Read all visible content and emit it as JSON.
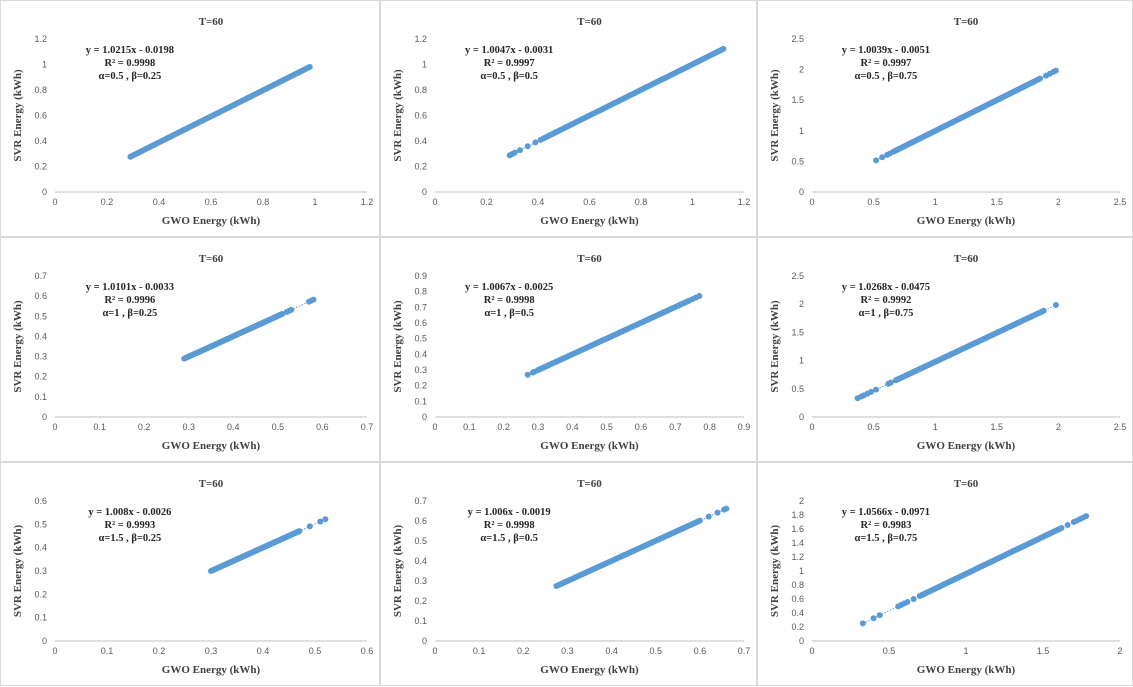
{
  "chart_data": [
    {
      "type": "scatter",
      "title": "T=60",
      "xlabel": "GWO Energy (kWh)",
      "ylabel": "SVR Energy (kWh)",
      "xlim": [
        0,
        1.2
      ],
      "ylim": [
        0,
        1.2
      ],
      "xticks": [
        "0",
        "0.2",
        "0.4",
        "0.6",
        "0.8",
        "1",
        "1.2"
      ],
      "yticks": [
        "0",
        "0.2",
        "0.4",
        "0.6",
        "0.8",
        "1",
        "1.2"
      ],
      "annotation": [
        "y = 1.0215x - 0.0198",
        "R² = 0.9998",
        "α=0.5 , β=0.25"
      ],
      "points": {
        "x_range": [
          0.29,
          0.98
        ],
        "clusters": []
      },
      "trendline": {
        "slope": 1.0215,
        "intercept": -0.0198
      },
      "color": "#5b9bd5",
      "grid": false,
      "legend": "none"
    },
    {
      "type": "scatter",
      "title": "T=60",
      "xlabel": "GWO Energy (kWh)",
      "ylabel": "SVR Energy (kWh)",
      "xlim": [
        0,
        1.2
      ],
      "ylim": [
        0,
        1.2
      ],
      "xticks": [
        "0",
        "0.2",
        "0.4",
        "0.6",
        "0.8",
        "1",
        "1.2"
      ],
      "yticks": [
        "0",
        "0.2",
        "0.4",
        "0.6",
        "0.8",
        "1",
        "1.2"
      ],
      "annotation": [
        "y = 1.0047x - 0.0031",
        "R² = 0.9997",
        "α=0.5 , β=0.5"
      ],
      "points": {
        "x_range": [
          0.42,
          1.12
        ],
        "clusters": [
          0.29,
          0.3,
          0.31,
          0.33,
          0.36,
          0.39,
          0.41
        ]
      },
      "trendline": {
        "slope": 1.0047,
        "intercept": -0.0031
      },
      "color": "#5b9bd5",
      "grid": false,
      "legend": "none"
    },
    {
      "type": "scatter",
      "title": "T=60",
      "xlabel": "GWO Energy (kWh)",
      "ylabel": "SVR Energy (kWh)",
      "xlim": [
        0,
        2.5
      ],
      "ylim": [
        0,
        2.5
      ],
      "xticks": [
        "0",
        "0.5",
        "1",
        "1.5",
        "2",
        "2.5"
      ],
      "yticks": [
        "0",
        "0.5",
        "1",
        "1.5",
        "2",
        "2.5"
      ],
      "annotation": [
        "y = 1.0039x - 0.0051",
        "R² = 0.9997",
        "α=0.5 , β=0.75"
      ],
      "points": {
        "x_range": [
          0.66,
          1.85
        ],
        "clusters": [
          0.52,
          0.57,
          0.61,
          0.63,
          1.9,
          1.93,
          1.96,
          1.98
        ]
      },
      "trendline": {
        "slope": 1.0039,
        "intercept": -0.0051
      },
      "color": "#5b9bd5",
      "grid": false,
      "legend": "none"
    },
    {
      "type": "scatter",
      "title": "T=60",
      "xlabel": "GWO Energy (kWh)",
      "ylabel": "SVR Energy (kWh)",
      "xlim": [
        0,
        0.7
      ],
      "ylim": [
        0,
        0.7
      ],
      "xticks": [
        "0",
        "0.1",
        "0.2",
        "0.3",
        "0.4",
        "0.5",
        "0.6",
        "0.7"
      ],
      "yticks": [
        "0",
        "0.1",
        "0.2",
        "0.3",
        "0.4",
        "0.5",
        "0.6",
        "0.7"
      ],
      "annotation": [
        "y = 1.0101x - 0.0033",
        "R² = 0.9996",
        "α=1 , β=0.25"
      ],
      "points": {
        "x_range": [
          0.29,
          0.51
        ],
        "clusters": [
          0.52,
          0.525,
          0.53,
          0.57,
          0.575,
          0.58
        ]
      },
      "trendline": {
        "slope": 1.0101,
        "intercept": -0.0033
      },
      "color": "#5b9bd5",
      "grid": false,
      "legend": "none"
    },
    {
      "type": "scatter",
      "title": "T=60",
      "xlabel": "GWO Energy (kWh)",
      "ylabel": "SVR Energy (kWh)",
      "xlim": [
        0,
        0.9
      ],
      "ylim": [
        0,
        0.9
      ],
      "xticks": [
        "0",
        "0.1",
        "0.2",
        "0.3",
        "0.4",
        "0.5",
        "0.6",
        "0.7",
        "0.8",
        "0.9"
      ],
      "yticks": [
        "0",
        "0.1",
        "0.2",
        "0.3",
        "0.4",
        "0.5",
        "0.6",
        "0.7",
        "0.8",
        "0.9"
      ],
      "annotation": [
        "y = 1.0067x - 0.0025",
        "R² = 0.9998",
        "α=1 , β=0.5"
      ],
      "points": {
        "x_range": [
          0.3,
          0.74
        ],
        "clusters": [
          0.27,
          0.285,
          0.29,
          0.75,
          0.76,
          0.77
        ]
      },
      "trendline": {
        "slope": 1.0067,
        "intercept": -0.0025
      },
      "color": "#5b9bd5",
      "grid": false,
      "legend": "none"
    },
    {
      "type": "scatter",
      "title": "T=60",
      "xlabel": "GWO Energy (kWh)",
      "ylabel": "SVR Energy (kWh)",
      "xlim": [
        0,
        2.5
      ],
      "ylim": [
        0,
        2.5
      ],
      "xticks": [
        "0",
        "0.5",
        "1",
        "1.5",
        "2",
        "2.5"
      ],
      "yticks": [
        "0",
        "0.5",
        "1",
        "1.5",
        "2",
        "2.5"
      ],
      "annotation": [
        "y = 1.0268x - 0.0475",
        "R² = 0.9992",
        "α=1 , β=0.75"
      ],
      "points": {
        "x_range": [
          0.68,
          1.88
        ],
        "clusters": [
          0.37,
          0.4,
          0.42,
          0.45,
          0.48,
          0.52,
          0.62,
          0.64,
          1.98
        ]
      },
      "trendline": {
        "slope": 1.0268,
        "intercept": -0.0475
      },
      "color": "#5b9bd5",
      "grid": false,
      "legend": "none"
    },
    {
      "type": "scatter",
      "title": "T=60",
      "xlabel": "GWO Energy (kWh)",
      "ylabel": "SVR Energy (kWh)",
      "xlim": [
        0,
        0.6
      ],
      "ylim": [
        0,
        0.6
      ],
      "xticks": [
        "0",
        "0.1",
        "0.2",
        "0.3",
        "0.4",
        "0.5",
        "0.6"
      ],
      "yticks": [
        "0",
        "0.1",
        "0.2",
        "0.3",
        "0.4",
        "0.5",
        "0.6"
      ],
      "annotation": [
        "y = 1.008x - 0.0026",
        "R² = 0.9993",
        "α=1.5 , β=0.25"
      ],
      "points": {
        "x_range": [
          0.3,
          0.47
        ],
        "clusters": [
          0.49,
          0.51,
          0.52
        ]
      },
      "trendline": {
        "slope": 1.008,
        "intercept": -0.0026
      },
      "color": "#5b9bd5",
      "grid": false,
      "legend": "none"
    },
    {
      "type": "scatter",
      "title": "T=60",
      "xlabel": "GWO Energy (kWh)",
      "ylabel": "SVR Energy (kWh)",
      "xlim": [
        0,
        0.7
      ],
      "ylim": [
        0,
        0.7
      ],
      "xticks": [
        "0",
        "0.1",
        "0.2",
        "0.3",
        "0.4",
        "0.5",
        "0.6",
        "0.7"
      ],
      "yticks": [
        "0",
        "0.1",
        "0.2",
        "0.3",
        "0.4",
        "0.5",
        "0.6",
        "0.7"
      ],
      "annotation": [
        "y = 1.006x - 0.0019",
        "R² = 0.9998",
        "α=1.5 , β=0.5"
      ],
      "points": {
        "x_range": [
          0.28,
          0.6
        ],
        "clusters": [
          0.275,
          0.62,
          0.64,
          0.655,
          0.66
        ]
      },
      "trendline": {
        "slope": 1.006,
        "intercept": -0.0019
      },
      "color": "#5b9bd5",
      "grid": false,
      "legend": "none"
    },
    {
      "type": "scatter",
      "title": "T=60",
      "xlabel": "GWO Energy (kWh)",
      "ylabel": "SVR Energy (kWh)",
      "xlim": [
        0,
        2
      ],
      "ylim": [
        0,
        2
      ],
      "xticks": [
        "0",
        "0.5",
        "1",
        "1.5",
        "2"
      ],
      "yticks": [
        "0",
        "0.2",
        "0.4",
        "0.6",
        "0.8",
        "1",
        "1.2",
        "1.4",
        "1.6",
        "1.8",
        "2"
      ],
      "annotation": [
        "y = 1.0566x - 0.0971",
        "R² = 0.9983",
        "α=1.5 , β=0.75"
      ],
      "points": {
        "x_range": [
          0.7,
          1.62
        ],
        "clusters": [
          0.33,
          0.4,
          0.44,
          0.56,
          0.58,
          0.6,
          0.62,
          0.66,
          1.66,
          1.7,
          1.72,
          1.74,
          1.76,
          1.78
        ]
      },
      "trendline": {
        "slope": 1.0566,
        "intercept": -0.0971
      },
      "color": "#5b9bd5",
      "grid": false,
      "legend": "none"
    }
  ]
}
